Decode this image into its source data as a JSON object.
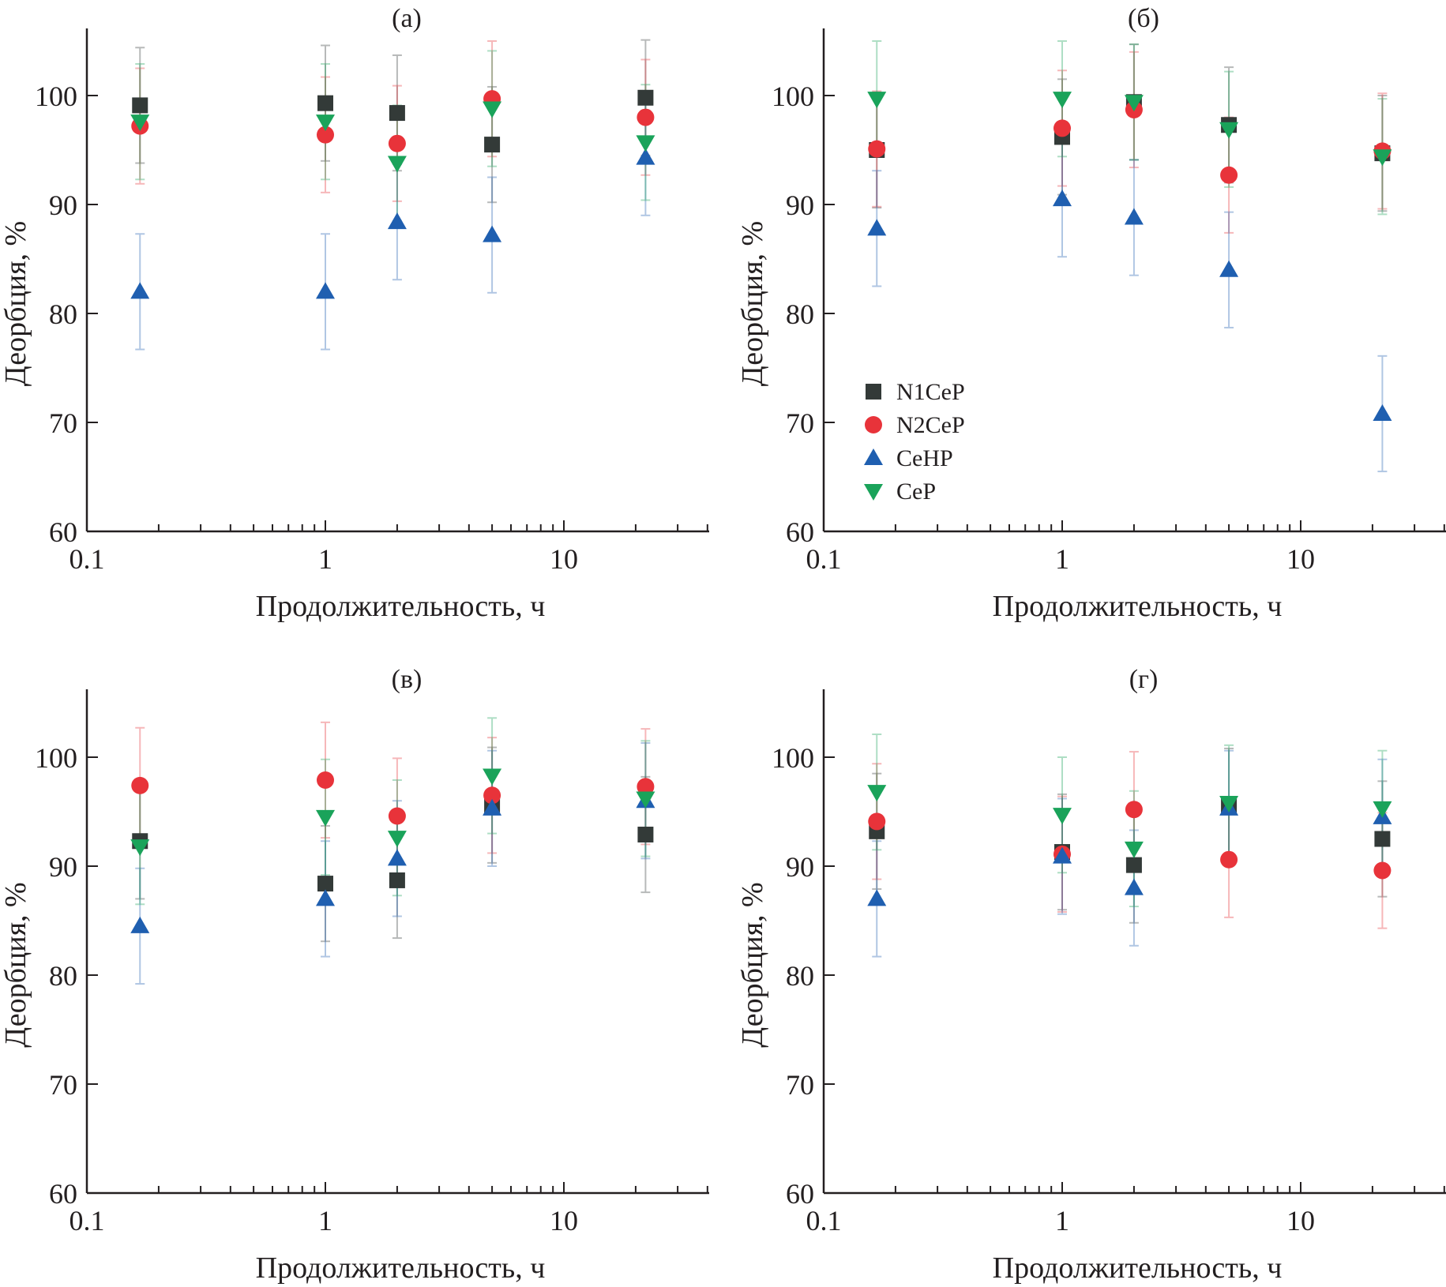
{
  "chart_data": [
    {
      "type": "scatter",
      "panel_label": "(а)",
      "xlabel": "Продолжительность, ч",
      "ylabel": "Деорбция, %",
      "xscale": "log",
      "xlim": [
        0.1,
        40
      ],
      "ylim": [
        60,
        106
      ],
      "xticks": [
        0.1,
        1,
        10
      ],
      "xtick_labels": [
        "0.1",
        "1",
        "10"
      ],
      "yticks": [
        60,
        70,
        80,
        90,
        100
      ],
      "ytick_labels": [
        "60",
        "70",
        "80",
        "90",
        "100"
      ],
      "grid": false,
      "legend": null,
      "x": [
        0.167,
        1,
        2,
        5,
        22
      ],
      "series": [
        {
          "name": "N1CeP",
          "marker": "square",
          "color": "#333a38",
          "values": [
            99.1,
            99.3,
            98.4,
            95.5,
            99.8
          ],
          "error": [
            5.3,
            5.3,
            5.3,
            5.3,
            5.3
          ]
        },
        {
          "name": "N2CeP",
          "marker": "circle",
          "color": "#e8333a",
          "values": [
            97.2,
            96.4,
            95.6,
            99.7,
            98.0
          ],
          "error": [
            5.3,
            5.3,
            5.3,
            5.3,
            5.3
          ]
        },
        {
          "name": "CeHP",
          "marker": "triangle-up",
          "color": "#1f5fb0",
          "values": [
            82.0,
            82.0,
            88.4,
            87.2,
            94.3
          ],
          "error": [
            5.3,
            5.3,
            5.3,
            5.3,
            5.3
          ]
        },
        {
          "name": "CeP",
          "marker": "triangle-down",
          "color": "#1aa35a",
          "values": [
            97.6,
            97.6,
            93.8,
            98.8,
            95.7
          ],
          "error": [
            5.3,
            5.3,
            5.3,
            5.3,
            5.3
          ]
        }
      ]
    },
    {
      "type": "scatter",
      "panel_label": "(б)",
      "xlabel": "Продолжительность, ч",
      "ylabel": "Деорбция, %",
      "xscale": "log",
      "xlim": [
        0.1,
        40
      ],
      "ylim": [
        60,
        106
      ],
      "xticks": [
        0.1,
        1,
        10
      ],
      "xtick_labels": [
        "0.1",
        "1",
        "10"
      ],
      "yticks": [
        60,
        70,
        80,
        90,
        100
      ],
      "ytick_labels": [
        "60",
        "70",
        "80",
        "90",
        "100"
      ],
      "grid": false,
      "legend": "lower-left",
      "x": [
        0.167,
        1,
        2,
        5,
        22
      ],
      "series": [
        {
          "name": "N1CeP",
          "marker": "square",
          "color": "#333a38",
          "values": [
            95.0,
            96.2,
            99.4,
            97.3,
            94.7
          ],
          "error": [
            5.3,
            5.3,
            5.3,
            5.3,
            5.3
          ]
        },
        {
          "name": "N2CeP",
          "marker": "circle",
          "color": "#e8333a",
          "values": [
            95.1,
            97.0,
            98.7,
            92.7,
            94.9
          ],
          "error": [
            5.3,
            5.3,
            5.3,
            5.3,
            5.3
          ]
        },
        {
          "name": "CeHP",
          "marker": "triangle-up",
          "color": "#1f5fb0",
          "values": [
            87.8,
            90.5,
            88.8,
            84.0,
            70.8
          ],
          "error": [
            5.3,
            5.3,
            5.3,
            5.3,
            5.3
          ]
        },
        {
          "name": "CeP",
          "marker": "triangle-down",
          "color": "#1aa35a",
          "values": [
            99.7,
            99.7,
            99.4,
            96.9,
            94.4
          ],
          "error": [
            5.3,
            5.3,
            5.3,
            5.3,
            5.3
          ]
        }
      ]
    },
    {
      "type": "scatter",
      "panel_label": "(в)",
      "xlabel": "Продолжительность, ч",
      "ylabel": "Деорбция, %",
      "xscale": "log",
      "xlim": [
        0.1,
        40
      ],
      "ylim": [
        60,
        106
      ],
      "xticks": [
        0.1,
        1,
        10
      ],
      "xtick_labels": [
        "0.1",
        "1",
        "10"
      ],
      "yticks": [
        60,
        70,
        80,
        90,
        100
      ],
      "ytick_labels": [
        "60",
        "70",
        "80",
        "90",
        "100"
      ],
      "grid": false,
      "legend": null,
      "x": [
        0.167,
        1,
        2,
        5,
        22
      ],
      "series": [
        {
          "name": "N1CeP",
          "marker": "square",
          "color": "#333a38",
          "values": [
            92.3,
            88.4,
            88.7,
            95.6,
            92.9
          ],
          "error": [
            5.3,
            5.3,
            5.3,
            5.3,
            5.3
          ]
        },
        {
          "name": "N2CeP",
          "marker": "circle",
          "color": "#e8333a",
          "values": [
            97.4,
            97.9,
            94.6,
            96.5,
            97.3
          ],
          "error": [
            5.3,
            5.3,
            5.3,
            5.3,
            5.3
          ]
        },
        {
          "name": "CeHP",
          "marker": "triangle-up",
          "color": "#1f5fb0",
          "values": [
            84.5,
            87.0,
            90.7,
            95.3,
            96.0
          ],
          "error": [
            5.3,
            5.3,
            5.3,
            5.3,
            5.3
          ]
        },
        {
          "name": "CeP",
          "marker": "triangle-down",
          "color": "#1aa35a",
          "values": [
            91.8,
            94.5,
            92.6,
            98.3,
            96.2
          ],
          "error": [
            5.3,
            5.3,
            5.3,
            5.3,
            5.3
          ]
        }
      ]
    },
    {
      "type": "scatter",
      "panel_label": "(г)",
      "xlabel": "Продолжительность, ч",
      "ylabel": "Деорбция, %",
      "xscale": "log",
      "xlim": [
        0.1,
        40
      ],
      "ylim": [
        60,
        106
      ],
      "xticks": [
        0.1,
        1,
        10
      ],
      "xtick_labels": [
        "0.1",
        "1",
        "10"
      ],
      "yticks": [
        60,
        70,
        80,
        90,
        100
      ],
      "ytick_labels": [
        "60",
        "70",
        "80",
        "90",
        "100"
      ],
      "grid": false,
      "legend": null,
      "x": [
        0.167,
        1,
        2,
        5,
        22
      ],
      "series": [
        {
          "name": "N1CeP",
          "marker": "square",
          "color": "#333a38",
          "values": [
            93.2,
            91.3,
            90.1,
            95.5,
            92.5
          ],
          "error": [
            5.3,
            5.3,
            5.3,
            5.3,
            5.3
          ]
        },
        {
          "name": "N2CeP",
          "marker": "circle",
          "color": "#e8333a",
          "values": [
            94.1,
            91.1,
            95.2,
            90.6,
            89.6
          ],
          "error": [
            5.3,
            5.3,
            5.3,
            5.3,
            5.3
          ]
        },
        {
          "name": "CeHP",
          "marker": "triangle-up",
          "color": "#1f5fb0",
          "values": [
            87.0,
            90.9,
            88.0,
            95.3,
            94.5
          ],
          "error": [
            5.3,
            5.3,
            5.3,
            5.3,
            5.3
          ]
        },
        {
          "name": "CeP",
          "marker": "triangle-down",
          "color": "#1aa35a",
          "values": [
            96.8,
            94.7,
            91.6,
            95.8,
            95.3
          ],
          "error": [
            5.3,
            5.3,
            5.3,
            5.3,
            5.3
          ]
        }
      ]
    }
  ]
}
